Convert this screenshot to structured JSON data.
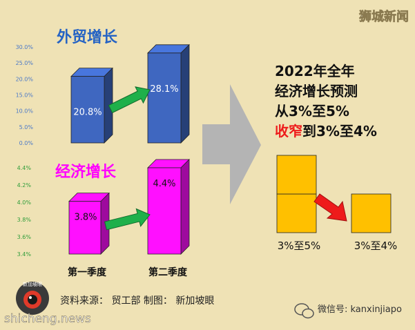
{
  "watermark_top": "狮城新闻",
  "source_line": "资料来源： 贸工部 制图： 新加坡眼",
  "logo_text": "新加坡眼",
  "site_watermark": "shicheng.news",
  "wechat_watermark": "微信号: kanxinjiapo",
  "colors": {
    "background": "#efe2b5",
    "trade_bar": "#3f67c0",
    "growth_bar": "#ff10ff",
    "forecast_box": "#ffc000",
    "green_arrow": "#1fb04a",
    "red_arrow": "#ee1b1b",
    "grey_arrow": "#b4b4b4",
    "trade_title": "#2563c4",
    "growth_title": "#ff00ff",
    "axis_blue": "#4a78c8",
    "axis_green": "#2f9d3a"
  },
  "icons": {
    "chat_icon": "wechat-icon",
    "logo_icon": "eye-logo-icon"
  },
  "chart_data": [
    {
      "type": "bar",
      "title": "外贸增长",
      "categories": [
        "第一季度",
        "第二季度"
      ],
      "values": [
        20.8,
        28.1
      ],
      "data_labels": [
        "20.8%",
        "28.1%"
      ],
      "ylim": [
        0,
        30
      ],
      "ytick_labels": [
        "0.0%",
        "5.0%",
        "10.0%",
        "15.0%",
        "20.0%",
        "25.0%",
        "30.0%"
      ],
      "bar_style": "3d-box"
    },
    {
      "type": "bar",
      "title": "经济增长",
      "categories": [
        "第一季度",
        "第二季度"
      ],
      "x_labels": [
        "第一季度",
        "第二季度"
      ],
      "values": [
        3.8,
        4.4
      ],
      "data_labels": [
        "3.8%",
        "4.4%"
      ],
      "ylim": [
        3.4,
        4.4
      ],
      "ytick_labels": [
        "3.4%",
        "3.6%",
        "3.8%",
        "4.0%",
        "4.2%",
        "4.4%"
      ],
      "bar_style": "3d-box"
    },
    {
      "type": "bar",
      "title_lines": [
        "2022年全年",
        "经济增长预测",
        "从3%至5%"
      ],
      "highlight_text": "收窄",
      "highlight_rest": "到3%至4%",
      "categories": [
        "3%至5%",
        "3%至4%"
      ],
      "boxes": [
        2,
        1
      ]
    }
  ]
}
